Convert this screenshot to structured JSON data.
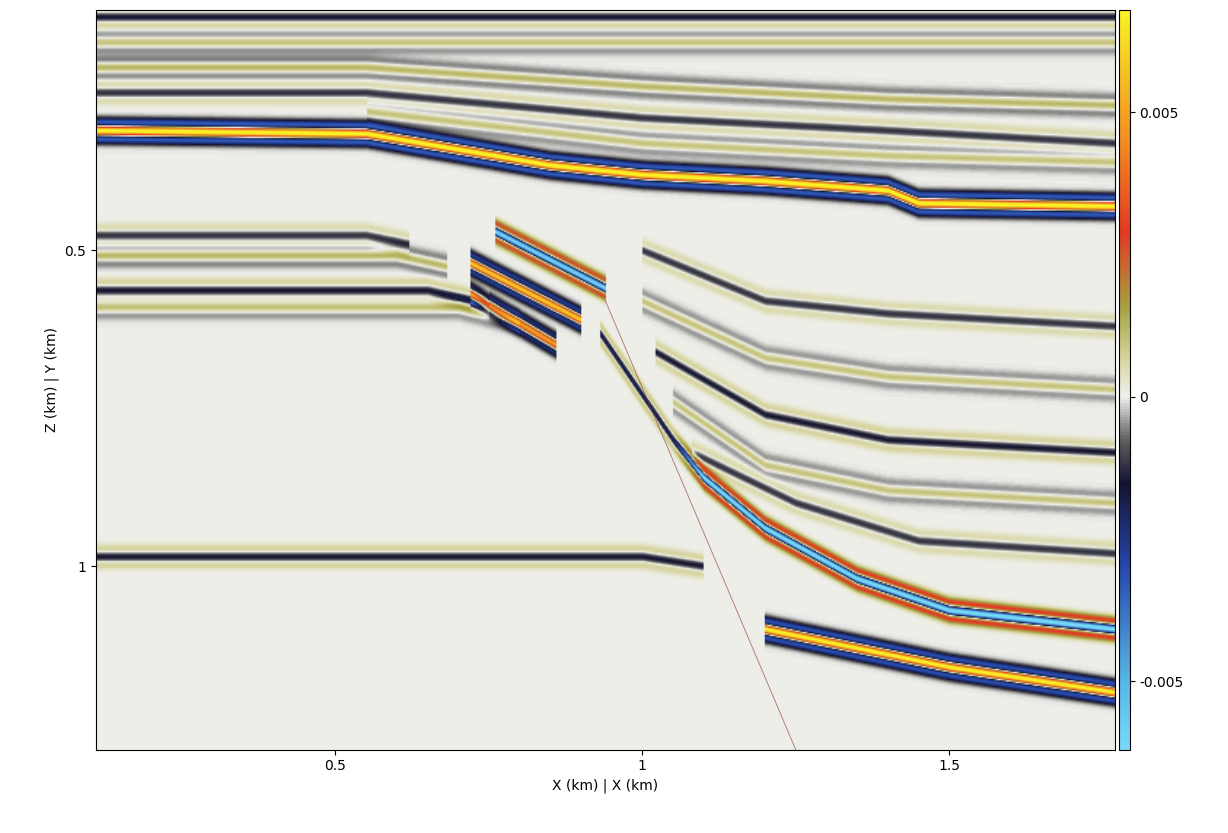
{
  "chart_data": {
    "type": "image",
    "x_label": "X (km) | X (km)",
    "y_label": "Z (km) | Y (km)",
    "xlim": [
      0.11,
      1.77
    ],
    "ylim": [
      1.29,
      0.12
    ],
    "xticks": [
      0.5,
      1,
      1.5
    ],
    "yticks": [
      0.5,
      1
    ],
    "colorbar": {
      "range": [
        -0.0062,
        0.0068
      ],
      "ticks": [
        -0.005,
        0,
        0.005
      ]
    },
    "reflectors": [
      {
        "x": [
          0.11,
          0.55,
          0.7,
          0.85,
          1.0,
          1.2,
          1.4,
          1.45,
          1.77
        ],
        "z": [
          0.31,
          0.315,
          0.34,
          0.365,
          0.38,
          0.39,
          0.405,
          0.425,
          0.43
        ],
        "amplitudes": [
          0.0075,
          0.0075,
          0.0075,
          0.0075,
          0.0075,
          0.0075,
          0.0075,
          0.0075,
          0.0075
        ]
      },
      {
        "x": [
          0.11,
          1.77
        ],
        "z": [
          0.13,
          0.13
        ],
        "amplitudes": [
          -0.0015,
          -0.0015
        ]
      },
      {
        "x": [
          0.11,
          1.77
        ],
        "z": [
          0.17,
          0.17
        ],
        "amplitudes": [
          0.001,
          0.001
        ]
      },
      {
        "x": [
          0.11,
          0.55,
          1.0,
          1.4,
          1.77
        ],
        "z": [
          0.21,
          0.21,
          0.24,
          0.26,
          0.27
        ],
        "amplitudes": [
          0.0012,
          0.0012,
          0.0012,
          0.0012,
          0.0012
        ]
      },
      {
        "x": [
          0.11,
          0.55,
          1.0,
          1.4,
          1.77
        ],
        "z": [
          0.25,
          0.25,
          0.29,
          0.31,
          0.33
        ],
        "amplitudes": [
          -0.0012,
          -0.0012,
          -0.0012,
          -0.0012,
          -0.0012
        ]
      },
      {
        "x": [
          0.55,
          1.0,
          1.4,
          1.77
        ],
        "z": [
          0.28,
          0.33,
          0.35,
          0.36
        ],
        "amplitudes": [
          0.001,
          0.001,
          0.001,
          0.001
        ]
      },
      {
        "x": [
          0.11,
          0.55,
          0.62
        ],
        "z": [
          0.476,
          0.476,
          0.49
        ],
        "amplitudes": [
          -0.0012,
          -0.0012,
          -0.0012
        ]
      },
      {
        "x": [
          0.11,
          0.6,
          0.68
        ],
        "z": [
          0.508,
          0.508,
          0.525
        ],
        "amplitudes": [
          0.0012,
          0.0012,
          0.0012
        ]
      },
      {
        "x": [
          0.11,
          0.65,
          0.75
        ],
        "z": [
          0.563,
          0.563,
          0.585
        ],
        "amplitudes": [
          -0.0015,
          -0.0015,
          -0.0015
        ]
      },
      {
        "x": [
          0.11,
          0.7,
          0.8
        ],
        "z": [
          0.59,
          0.59,
          0.615
        ],
        "amplitudes": [
          0.001,
          0.001,
          0.001
        ]
      },
      {
        "x": [
          0.11,
          1.0,
          1.1
        ],
        "z": [
          0.985,
          0.985,
          1.0
        ],
        "amplitudes": [
          -0.0015,
          -0.0015,
          -0.0015
        ]
      },
      {
        "x": [
          0.76,
          0.94
        ],
        "z": [
          0.47,
          0.56
        ],
        "amplitudes": [
          -0.006,
          -0.006
        ]
      },
      {
        "x": [
          0.72,
          0.9
        ],
        "z": [
          0.52,
          0.61
        ],
        "amplitudes": [
          0.006,
          0.006
        ]
      },
      {
        "x": [
          0.72,
          0.86
        ],
        "z": [
          0.57,
          0.65
        ],
        "amplitudes": [
          0.005,
          0.005
        ]
      },
      {
        "x": [
          0.93,
          1.05,
          1.1,
          1.2,
          1.35,
          1.5,
          1.77
        ],
        "z": [
          0.63,
          0.8,
          0.86,
          0.94,
          1.02,
          1.07,
          1.1
        ],
        "amplitudes": [
          -0.002,
          -0.002,
          -0.0065,
          -0.0065,
          -0.0065,
          -0.0065,
          -0.0065
        ]
      },
      {
        "x": [
          1.2,
          1.35,
          1.5,
          1.77
        ],
        "z": [
          1.1,
          1.13,
          1.16,
          1.2
        ],
        "amplitudes": [
          0.007,
          0.007,
          0.007,
          0.007
        ]
      },
      {
        "x": [
          1.0,
          1.2,
          1.4,
          1.77
        ],
        "z": [
          0.5,
          0.58,
          0.6,
          0.62
        ],
        "amplitudes": [
          -0.0012,
          -0.0012,
          -0.0012,
          -0.0012
        ]
      },
      {
        "x": [
          1.0,
          1.2,
          1.4,
          1.77
        ],
        "z": [
          0.58,
          0.67,
          0.7,
          0.72
        ],
        "amplitudes": [
          0.001,
          0.001,
          0.001,
          0.001
        ]
      },
      {
        "x": [
          1.02,
          1.2,
          1.4,
          1.77
        ],
        "z": [
          0.66,
          0.76,
          0.8,
          0.82
        ],
        "amplitudes": [
          -0.0015,
          -0.0015,
          -0.0015,
          -0.0015
        ]
      },
      {
        "x": [
          1.05,
          1.2,
          1.4,
          1.77
        ],
        "z": [
          0.74,
          0.84,
          0.88,
          0.9
        ],
        "amplitudes": [
          0.001,
          0.001,
          0.001,
          0.001
        ]
      },
      {
        "x": [
          1.08,
          1.25,
          1.45,
          1.77
        ],
        "z": [
          0.82,
          0.9,
          0.96,
          0.98
        ],
        "amplitudes": [
          -0.0012,
          -0.0012,
          -0.0012,
          -0.0012
        ]
      }
    ],
    "faults": [
      {
        "x": [
          0.94,
          1.25
        ],
        "z": [
          0.58,
          1.29
        ]
      }
    ]
  }
}
